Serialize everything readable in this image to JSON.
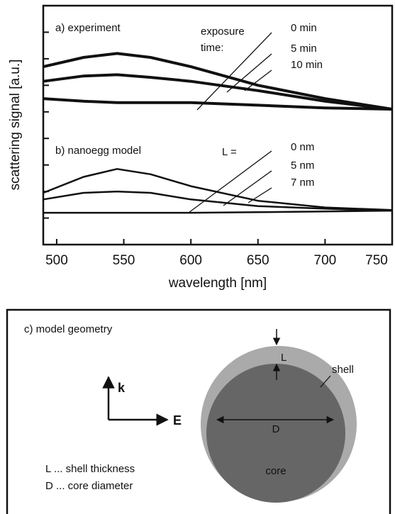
{
  "chart_data": {
    "type": "line",
    "x_label": "wavelength [nm]",
    "y_label": "scattering signal [a.u.]",
    "xlim": [
      490,
      750
    ],
    "xticks": [
      500,
      550,
      600,
      650,
      700,
      750
    ],
    "ylim": [
      0,
      9
    ],
    "yticks": [
      1,
      2,
      3,
      4,
      5,
      6,
      7,
      8
    ],
    "x": [
      490,
      520,
      545,
      570,
      600,
      650,
      700,
      750
    ],
    "annotations": [
      "a)  experiment",
      "exposure",
      "time:",
      "b)  nanoegg model",
      "L ="
    ],
    "series": [
      {
        "name": "0 min",
        "color": "#111111",
        "values": [
          6.7,
          7.05,
          7.2,
          7.05,
          6.7,
          6.0,
          5.5,
          5.1
        ]
      },
      {
        "name": "5 min",
        "color": "#111111",
        "values": [
          6.15,
          6.35,
          6.4,
          6.3,
          6.15,
          5.8,
          5.4,
          5.1
        ]
      },
      {
        "name": "10 min",
        "color": "#111111",
        "values": [
          5.5,
          5.4,
          5.35,
          5.35,
          5.35,
          5.25,
          5.15,
          5.1
        ]
      },
      {
        "name": "0 nm",
        "color": "#111111",
        "values": [
          1.95,
          2.55,
          2.85,
          2.65,
          2.2,
          1.65,
          1.4,
          1.3
        ]
      },
      {
        "name": "5 nm",
        "color": "#111111",
        "values": [
          1.7,
          1.95,
          2.0,
          1.95,
          1.7,
          1.45,
          1.35,
          1.28
        ]
      },
      {
        "name": "7 nm",
        "color": "#111111",
        "values": [
          1.2,
          1.2,
          1.2,
          1.2,
          1.2,
          1.22,
          1.25,
          1.28
        ]
      }
    ]
  },
  "diagram": {
    "title": "c)  model geometry",
    "k": "k",
    "E": "E",
    "legend": [
      "L ... shell thickness",
      "D ... core diameter"
    ],
    "shell": "shell",
    "L": "L",
    "D": "D",
    "core": "core"
  }
}
